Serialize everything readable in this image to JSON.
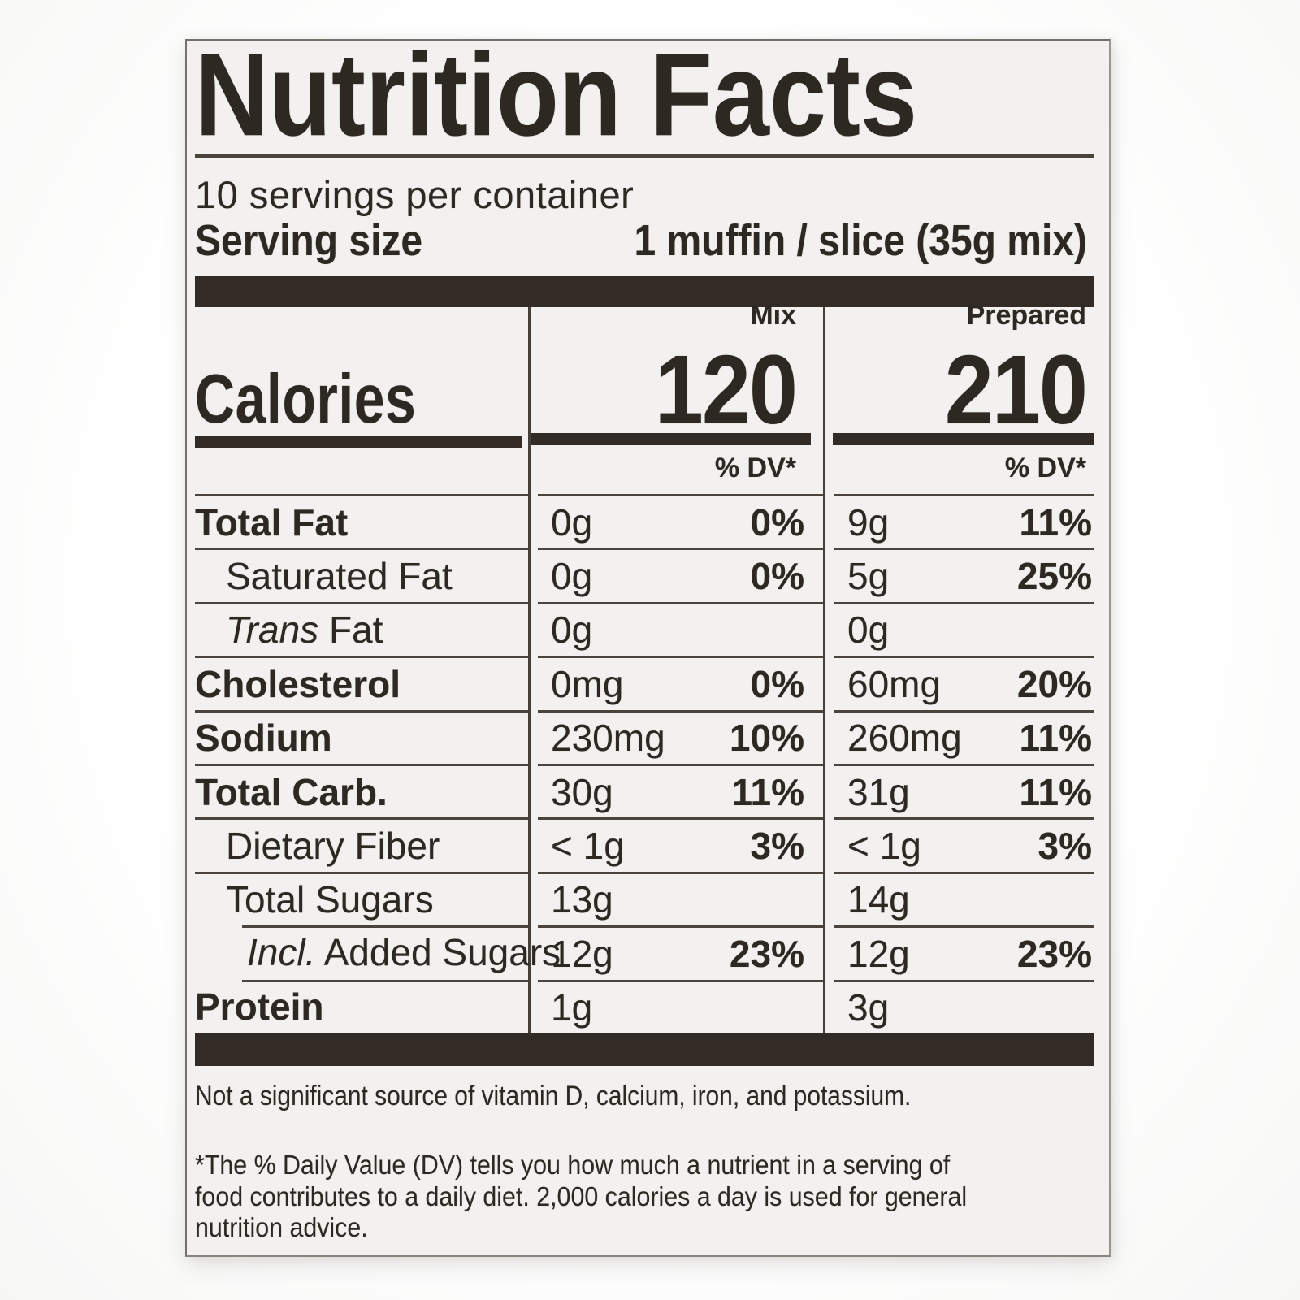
{
  "label": {
    "title": "Nutrition Facts",
    "servings_per_container": "10 servings per container",
    "serving_size": {
      "label": "Serving size",
      "value": "1 muffin / slice (35g mix)"
    },
    "calories": {
      "label": "Calories",
      "columns": [
        {
          "name": "Mix",
          "value": "120",
          "dv_header": "% DV*"
        },
        {
          "name": "Prepared",
          "value": "210",
          "dv_header": "% DV*"
        }
      ]
    },
    "rows": [
      {
        "prefix": "",
        "name": "Total Fat",
        "mix": {
          "amount": "0g",
          "dv": "0%"
        },
        "prepared": {
          "amount": "9g",
          "dv": "11%"
        }
      },
      {
        "prefix": "",
        "name": "Saturated Fat",
        "mix": {
          "amount": "0g",
          "dv": "0%"
        },
        "prepared": {
          "amount": "5g",
          "dv": "25%"
        }
      },
      {
        "prefix": "Trans",
        "name": " Fat",
        "mix": {
          "amount": "0g",
          "dv": ""
        },
        "prepared": {
          "amount": "0g",
          "dv": ""
        }
      },
      {
        "prefix": "",
        "name": "Cholesterol",
        "mix": {
          "amount": "0mg",
          "dv": "0%"
        },
        "prepared": {
          "amount": "60mg",
          "dv": "20%"
        }
      },
      {
        "prefix": "",
        "name": "Sodium",
        "mix": {
          "amount": "230mg",
          "dv": "10%"
        },
        "prepared": {
          "amount": "260mg",
          "dv": "11%"
        }
      },
      {
        "prefix": "",
        "name": "Total Carb.",
        "mix": {
          "amount": "30g",
          "dv": "11%"
        },
        "prepared": {
          "amount": "31g",
          "dv": "11%"
        }
      },
      {
        "prefix": "",
        "name": "Dietary Fiber",
        "mix": {
          "amount": "< 1g",
          "dv": "3%"
        },
        "prepared": {
          "amount": "< 1g",
          "dv": "3%"
        }
      },
      {
        "prefix": "",
        "name": "Total Sugars",
        "mix": {
          "amount": "13g",
          "dv": ""
        },
        "prepared": {
          "amount": "14g",
          "dv": ""
        }
      },
      {
        "prefix": "Incl.",
        "name": " Added Sugars",
        "mix": {
          "amount": "12g",
          "dv": "23%"
        },
        "prepared": {
          "amount": "12g",
          "dv": "23%"
        }
      },
      {
        "prefix": "",
        "name": "Protein",
        "mix": {
          "amount": "1g",
          "dv": ""
        },
        "prepared": {
          "amount": "3g",
          "dv": ""
        }
      }
    ],
    "footnotes": {
      "significant_source": "Not a significant source of vitamin D, calcium, iron, and potassium.",
      "daily_value": "*The % Daily Value (DV) tells you how much a nutrient in a serving of\nfood contributes to a daily diet. 2,000 calories a day is used for general\nnutrition advice."
    },
    "colors": {
      "text": "#2e2823",
      "bar": "#332c26",
      "label_background": "#f2f1ef"
    }
  }
}
